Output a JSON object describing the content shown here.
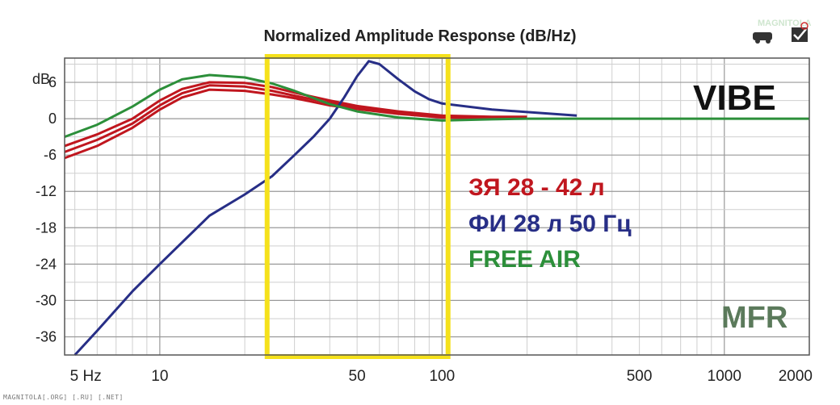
{
  "chart_data": {
    "type": "line",
    "title": "Normalized Amplitude Response (dB/Hz)",
    "ylabel": "dB",
    "x_scale": "log",
    "xlim": [
      4.6,
      2000
    ],
    "ylim": [
      -39,
      10
    ],
    "x_ticks": [
      {
        "value": 5,
        "label": "5 Hz"
      },
      {
        "value": 10,
        "label": "10"
      },
      {
        "value": 50,
        "label": "50"
      },
      {
        "value": 100,
        "label": "100"
      },
      {
        "value": 500,
        "label": "500"
      },
      {
        "value": 1000,
        "label": "1000"
      },
      {
        "value": 2000,
        "label": "2000"
      }
    ],
    "y_ticks": [
      {
        "value": 6,
        "label": "6"
      },
      {
        "value": 0,
        "label": "0"
      },
      {
        "value": -6,
        "label": "-6"
      },
      {
        "value": -12,
        "label": "-12"
      },
      {
        "value": -18,
        "label": "-18"
      },
      {
        "value": -24,
        "label": "-24"
      },
      {
        "value": -30,
        "label": "-30"
      },
      {
        "value": -36,
        "label": "-36"
      }
    ],
    "highlight_range": [
      24,
      105
    ],
    "series": [
      {
        "name": "ЗЯ 28 - 42 л",
        "color": "#c0161e",
        "x": [
          4.6,
          6,
          8,
          10,
          12,
          15,
          20,
          25,
          30,
          40,
          50,
          70,
          100,
          150,
          200
        ],
        "y": [
          -6.5,
          -4.5,
          -1.5,
          1.5,
          3.5,
          4.8,
          4.6,
          4.0,
          3.4,
          2.2,
          1.6,
          0.8,
          0.2,
          0.1,
          0.1
        ]
      },
      {
        "color": "#c0161e",
        "x": [
          4.6,
          6,
          8,
          10,
          12,
          15,
          20,
          25,
          30,
          40,
          50,
          70,
          100,
          150,
          200
        ],
        "y": [
          -5.5,
          -3.5,
          -0.8,
          2.2,
          4.2,
          5.5,
          5.3,
          4.6,
          3.8,
          2.6,
          1.9,
          1.0,
          0.4,
          0.2,
          0.2
        ]
      },
      {
        "color": "#c0161e",
        "x": [
          4.6,
          6,
          8,
          10,
          12,
          15,
          20,
          25,
          30,
          40,
          50,
          70,
          100,
          150,
          200
        ],
        "y": [
          -4.5,
          -2.6,
          0.0,
          3.0,
          4.9,
          6.0,
          5.9,
          5.2,
          4.3,
          3.0,
          2.1,
          1.2,
          0.5,
          0.3,
          0.3
        ]
      },
      {
        "name": "ФИ 28 л 50 Гц",
        "color": "#272e86",
        "x": [
          5,
          6,
          8,
          10,
          15,
          20,
          25,
          30,
          35,
          40,
          45,
          50,
          55,
          60,
          70,
          80,
          90,
          100,
          150,
          300
        ],
        "y": [
          -39,
          -35,
          -28.5,
          -24,
          -16,
          -12.5,
          -9.5,
          -6,
          -3,
          0,
          3.5,
          7,
          9.5,
          9,
          6.5,
          4.5,
          3.2,
          2.5,
          1.5,
          0.5
        ]
      },
      {
        "name": "FREE AIR",
        "color": "#2c8f3a",
        "x": [
          4.6,
          6,
          8,
          10,
          12,
          15,
          20,
          25,
          30,
          40,
          50,
          70,
          100,
          150,
          200,
          500,
          1000,
          2000
        ],
        "y": [
          -3,
          -1,
          2,
          4.8,
          6.5,
          7.2,
          6.8,
          5.8,
          4.6,
          2.4,
          1.2,
          0.2,
          -0.3,
          -0.1,
          0,
          0,
          0,
          0
        ]
      }
    ],
    "annotations": [
      {
        "text": "VIBE",
        "color": "#111111"
      },
      {
        "text": "ЗЯ 28 - 42 л",
        "color": "#c0161e"
      },
      {
        "text": "ФИ 28 л 50 Гц",
        "color": "#272e86"
      },
      {
        "text": "FREE AIR",
        "color": "#2c8f3a"
      },
      {
        "text": "MFR",
        "color": "#5b7a5b"
      }
    ]
  },
  "footer": "MAGNITOLA[.ORG] [.RU] [.NET]"
}
